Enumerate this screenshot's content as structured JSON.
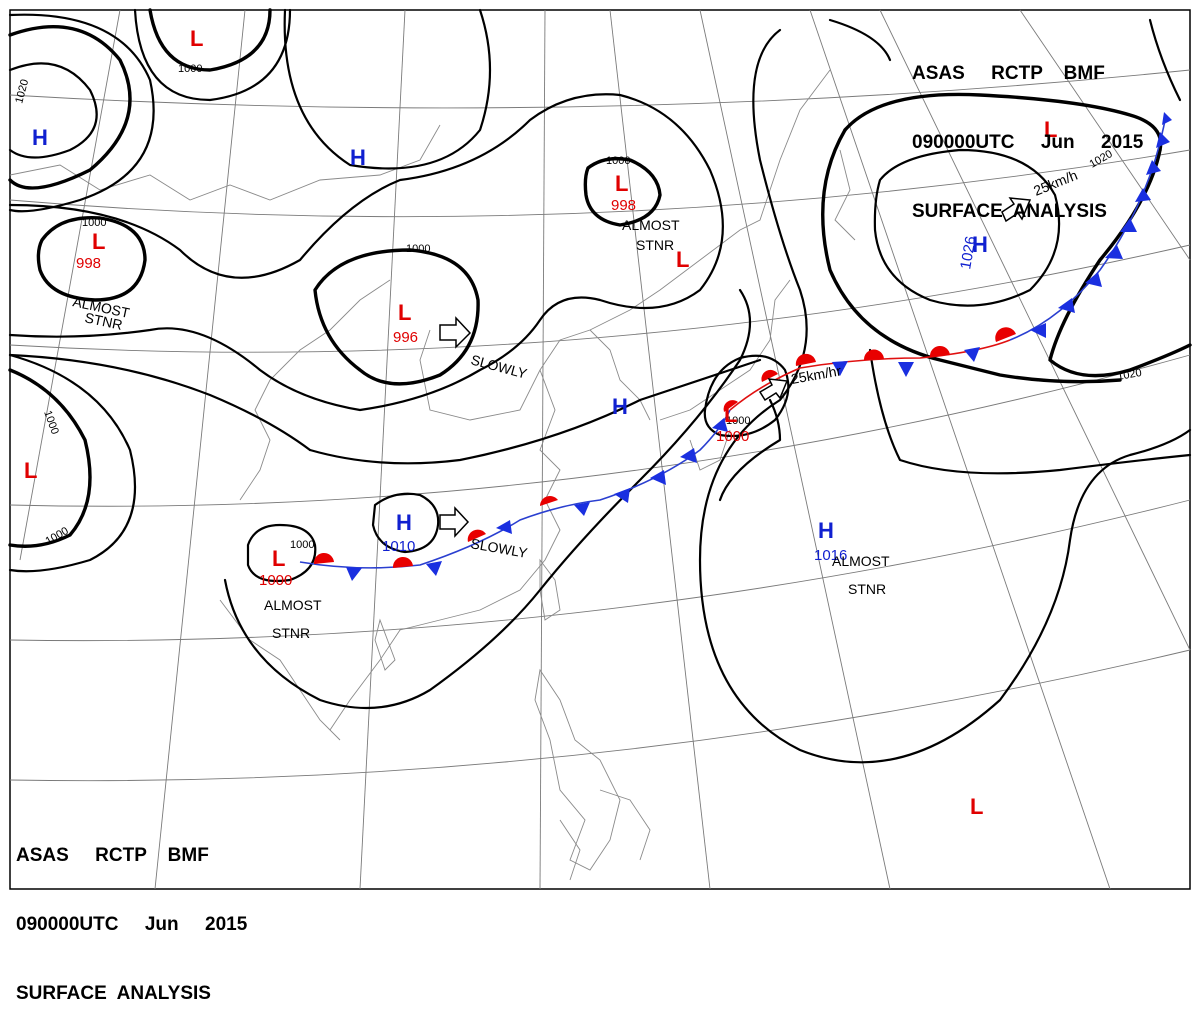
{
  "title": {
    "line1": "ASAS     RCTP    BMF",
    "line2": "090000UTC     Jun     2015",
    "line3": "SURFACE  ANALYSIS"
  },
  "colors": {
    "low": "#e00000",
    "high": "#1020d0",
    "cold_front": "#1a2fe0",
    "warm_front": "#e80000",
    "isobar": "#000000",
    "grid": "#7a7a7a"
  },
  "isobar_labels": [
    "1020",
    "1000",
    "1000",
    "1000",
    "1000",
    "1000",
    "1020",
    "1020",
    "1000",
    "1000",
    "1000"
  ],
  "systems": [
    {
      "type": "L",
      "pressure": "",
      "motion": ""
    },
    {
      "type": "H",
      "pressure": "",
      "motion": ""
    },
    {
      "type": "H",
      "pressure": "",
      "motion": ""
    },
    {
      "type": "L",
      "pressure": "998",
      "motion": "ALMOST STNR"
    },
    {
      "type": "L",
      "pressure": "996",
      "motion": "SLOWLY"
    },
    {
      "type": "L",
      "pressure": "998",
      "motion": "ALMOST STNR"
    },
    {
      "type": "L",
      "pressure": "",
      "motion": ""
    },
    {
      "type": "L",
      "pressure": "",
      "motion": ""
    },
    {
      "type": "H",
      "pressure": "1026",
      "motion": "25km/h"
    },
    {
      "type": "H",
      "pressure": "",
      "motion": ""
    },
    {
      "type": "L",
      "pressure": "1000",
      "motion": "25km/hr"
    },
    {
      "type": "L",
      "pressure": "",
      "motion": ""
    },
    {
      "type": "H",
      "pressure": "1010",
      "motion": "SLOWLY"
    },
    {
      "type": "L",
      "pressure": "1000",
      "motion": "ALMOST STNR"
    },
    {
      "type": "H",
      "pressure": "1016",
      "motion": "ALMOST STNR"
    },
    {
      "type": "L",
      "pressure": "",
      "motion": ""
    }
  ],
  "motion_words": {
    "almost": "ALMOST",
    "stnr": "STNR",
    "slowly": "SLOWLY",
    "speed_kmh": "25km/h",
    "speed_kmhr": "25km/hr"
  }
}
